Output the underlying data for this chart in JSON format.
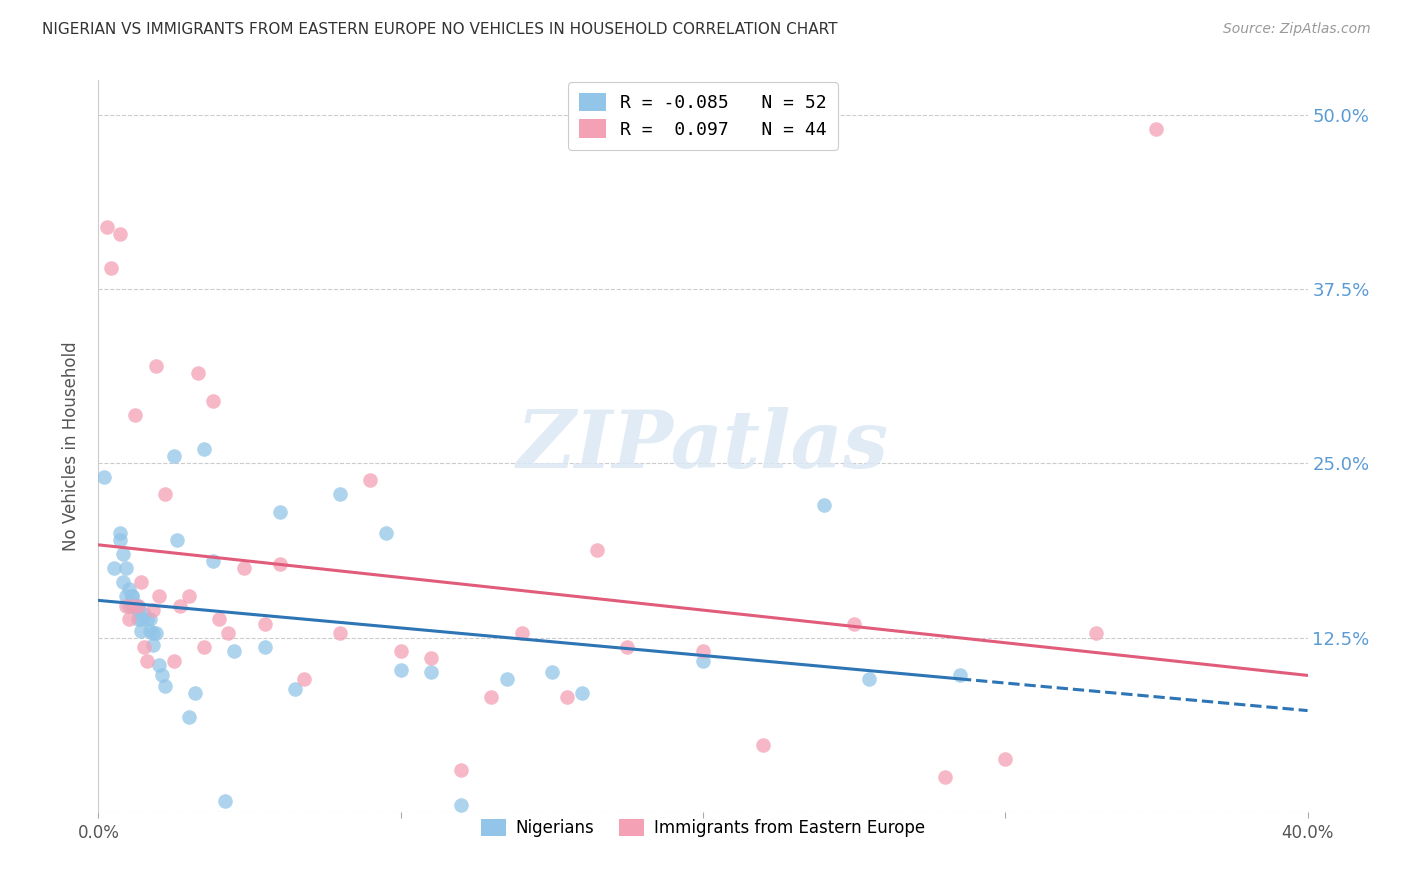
{
  "title": "NIGERIAN VS IMMIGRANTS FROM EASTERN EUROPE NO VEHICLES IN HOUSEHOLD CORRELATION CHART",
  "source": "Source: ZipAtlas.com",
  "ylabel": "No Vehicles in Household",
  "xlim": [
    0.0,
    0.4
  ],
  "ylim": [
    0.0,
    0.525
  ],
  "yticks": [
    0.0,
    0.125,
    0.25,
    0.375,
    0.5
  ],
  "right_ytick_labels": [
    "",
    "12.5%",
    "25.0%",
    "37.5%",
    "50.0%"
  ],
  "xtick_labels_map": {
    "0.0": "0.0%",
    "0.4": "40.0%"
  },
  "legend_labels_bottom": [
    "Nigerians",
    "Immigrants from Eastern Europe"
  ],
  "nigerian_color": "#92C5E8",
  "eastern_europe_color": "#F4A0B5",
  "trend_blue": "#2E75B6",
  "trend_pink": "#E05C7A",
  "nigerian_R": -0.085,
  "nigerian_N": 52,
  "eastern_europe_R": 0.097,
  "eastern_europe_N": 44,
  "background_color": "#FFFFFF",
  "grid_color": "#CCCCCC",
  "right_axis_color": "#5B9BD5",
  "watermark": "ZIPatlas",
  "nigerian_x": [
    0.002,
    0.005,
    0.007,
    0.007,
    0.008,
    0.008,
    0.009,
    0.009,
    0.01,
    0.01,
    0.011,
    0.011,
    0.012,
    0.012,
    0.013,
    0.013,
    0.013,
    0.014,
    0.014,
    0.015,
    0.016,
    0.017,
    0.017,
    0.018,
    0.018,
    0.019,
    0.02,
    0.021,
    0.022,
    0.025,
    0.026,
    0.03,
    0.032,
    0.035,
    0.038,
    0.042,
    0.045,
    0.055,
    0.06,
    0.065,
    0.08,
    0.095,
    0.1,
    0.11,
    0.12,
    0.135,
    0.15,
    0.16,
    0.2,
    0.24,
    0.255,
    0.285
  ],
  "nigerian_y": [
    0.24,
    0.175,
    0.195,
    0.2,
    0.165,
    0.185,
    0.155,
    0.175,
    0.148,
    0.16,
    0.155,
    0.155,
    0.148,
    0.148,
    0.138,
    0.145,
    0.148,
    0.13,
    0.138,
    0.142,
    0.138,
    0.138,
    0.13,
    0.128,
    0.12,
    0.128,
    0.105,
    0.098,
    0.09,
    0.255,
    0.195,
    0.068,
    0.085,
    0.26,
    0.18,
    0.008,
    0.115,
    0.118,
    0.215,
    0.088,
    0.228,
    0.2,
    0.102,
    0.1,
    0.005,
    0.095,
    0.1,
    0.085,
    0.108,
    0.22,
    0.095,
    0.098
  ],
  "eastern_europe_x": [
    0.003,
    0.004,
    0.007,
    0.009,
    0.01,
    0.011,
    0.012,
    0.013,
    0.014,
    0.015,
    0.016,
    0.018,
    0.019,
    0.02,
    0.022,
    0.025,
    0.027,
    0.03,
    0.033,
    0.035,
    0.038,
    0.04,
    0.043,
    0.048,
    0.055,
    0.06,
    0.068,
    0.08,
    0.09,
    0.1,
    0.11,
    0.12,
    0.13,
    0.14,
    0.155,
    0.165,
    0.175,
    0.2,
    0.22,
    0.25,
    0.28,
    0.3,
    0.33,
    0.35
  ],
  "eastern_europe_y": [
    0.42,
    0.39,
    0.415,
    0.148,
    0.138,
    0.148,
    0.285,
    0.148,
    0.165,
    0.118,
    0.108,
    0.145,
    0.32,
    0.155,
    0.228,
    0.108,
    0.148,
    0.155,
    0.315,
    0.118,
    0.295,
    0.138,
    0.128,
    0.175,
    0.135,
    0.178,
    0.095,
    0.128,
    0.238,
    0.115,
    0.11,
    0.03,
    0.082,
    0.128,
    0.082,
    0.188,
    0.118,
    0.115,
    0.048,
    0.135,
    0.025,
    0.038,
    0.128,
    0.49
  ]
}
